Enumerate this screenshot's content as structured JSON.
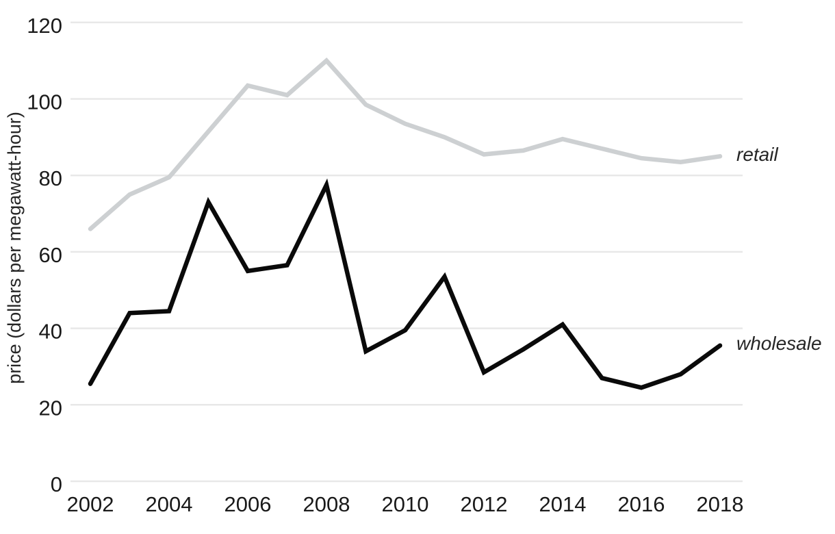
{
  "chart_data": {
    "type": "line",
    "title": "",
    "xlabel": "",
    "ylabel": "price (dollars per megawatt-hour)",
    "x": [
      2002,
      2003,
      2004,
      2005,
      2006,
      2007,
      2008,
      2009,
      2010,
      2011,
      2012,
      2013,
      2014,
      2015,
      2016,
      2017,
      2018
    ],
    "series": [
      {
        "name": "retail",
        "label": "retail",
        "color": "#cdd0d2",
        "values": [
          66,
          75,
          79.5,
          91.5,
          103.5,
          101,
          110,
          98.5,
          93.5,
          90,
          85.5,
          86.5,
          89.5,
          87,
          84.5,
          83.5,
          85
        ]
      },
      {
        "name": "wholesale",
        "label": "wholesale",
        "color": "#0a0a0a",
        "values": [
          25.5,
          44,
          44.5,
          73,
          55,
          56.5,
          77.5,
          34,
          39.5,
          53.5,
          28.5,
          34.5,
          41,
          27,
          24.5,
          28,
          35.5
        ]
      }
    ],
    "ylim": [
      0,
      120
    ],
    "yticks": [
      0,
      20,
      40,
      60,
      80,
      100,
      120
    ],
    "xticks": [
      2002,
      2004,
      2006,
      2008,
      2010,
      2012,
      2014,
      2016,
      2018
    ],
    "grid": "horizontal",
    "grid_color": "#e8e8e8",
    "tick_label_color": "#1a1a1a",
    "background_color": "#ffffff",
    "legend_position": "right-of-line-ends"
  }
}
